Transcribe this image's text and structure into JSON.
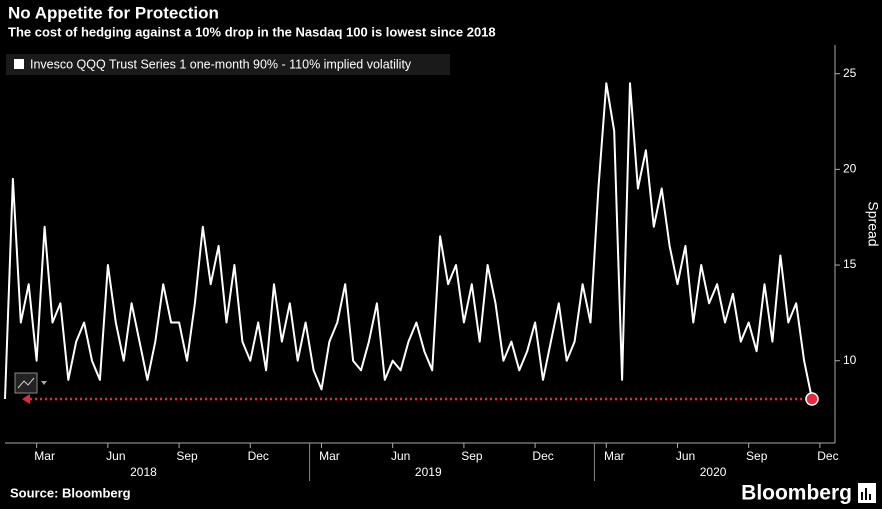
{
  "chart_data": {
    "type": "line",
    "title": "No Appetite for Protection",
    "subtitle": "The cost of hedging against a 10% drop in the Nasdaq 100 is lowest since 2018",
    "y_axis_label": "Spread",
    "source": "Source: Bloomberg",
    "brand": "Bloomberg",
    "categories": [
      null,
      null,
      null,
      null,
      "Mar",
      null,
      null,
      null,
      null,
      null,
      null,
      null,
      null,
      "Jun",
      null,
      null,
      null,
      null,
      null,
      null,
      null,
      null,
      "Sep",
      null,
      null,
      null,
      null,
      null,
      null,
      null,
      null,
      "Dec",
      null,
      null,
      null,
      null,
      null,
      null,
      null,
      null,
      "Mar",
      null,
      null,
      null,
      null,
      null,
      null,
      null,
      null,
      "Jun",
      null,
      null,
      null,
      null,
      null,
      null,
      null,
      null,
      "Sep",
      null,
      null,
      null,
      null,
      null,
      null,
      null,
      null,
      "Dec",
      null,
      null,
      null,
      null,
      null,
      null,
      null,
      null,
      "Mar",
      null,
      null,
      null,
      null,
      null,
      null,
      null,
      null,
      "Jun",
      null,
      null,
      null,
      null,
      null,
      null,
      null,
      null,
      "Sep",
      null,
      null,
      null,
      null,
      null,
      null,
      null,
      null,
      "Dec"
    ],
    "years": [
      "2018",
      "2019",
      "2020"
    ],
    "series": [
      {
        "name": "Invesco QQQ Trust Series 1 one-month 90% - 110% implied volatility",
        "color": "#ffffff",
        "values": [
          8,
          19.5,
          12,
          14,
          10,
          17,
          12,
          13,
          9,
          11,
          12,
          10,
          9,
          15,
          12,
          10,
          13,
          11,
          9,
          11,
          14,
          12,
          12,
          10,
          13,
          17,
          14,
          16,
          12,
          15,
          11,
          10,
          12,
          9.5,
          14,
          11,
          13,
          10,
          12,
          9.5,
          8.5,
          11,
          12,
          14,
          10,
          9.5,
          11,
          13,
          9,
          10,
          9.5,
          11,
          12,
          10.5,
          9.5,
          16.5,
          14,
          15,
          12,
          14,
          11,
          15,
          13,
          10,
          11,
          9.5,
          10.5,
          12,
          9,
          11,
          13,
          10,
          11,
          14,
          12,
          19,
          24.5,
          22,
          9,
          24.5,
          19,
          21,
          17,
          19,
          16,
          14,
          16,
          12,
          15,
          13,
          14,
          12,
          13.5,
          11,
          12,
          10.5,
          14,
          11,
          15.5,
          12,
          13,
          10,
          8,
          null
        ]
      }
    ],
    "reference_line": {
      "value": 8,
      "color": "#e8263c"
    },
    "ylim": [
      5.7,
      26.5
    ],
    "yticks": [
      10,
      15,
      20,
      25
    ],
    "background": "#000000"
  }
}
